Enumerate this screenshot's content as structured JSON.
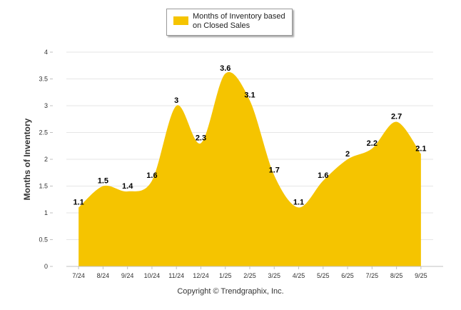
{
  "chart_data": {
    "type": "area",
    "title": "",
    "xlabel": "",
    "ylabel": "Months of Inventory",
    "categories": [
      "7/24",
      "8/24",
      "9/24",
      "10/24",
      "11/24",
      "12/24",
      "1/25",
      "2/25",
      "3/25",
      "4/25",
      "5/25",
      "6/25",
      "7/25",
      "8/25",
      "9/25"
    ],
    "series": [
      {
        "name": "Months of Inventory based on Closed Sales",
        "values": [
          1.1,
          1.5,
          1.4,
          1.6,
          3,
          2.3,
          3.6,
          3.1,
          1.7,
          1.1,
          1.6,
          2,
          2.2,
          2.7,
          2.1
        ],
        "labels": [
          "1.1",
          "1.5",
          "1.4",
          "1.6",
          "3",
          "2.3",
          "3.6",
          "3.1",
          "1.7",
          "1.1",
          "1.6",
          "2",
          "2.2",
          "2.7",
          "2.1"
        ],
        "color": "#F5C400"
      }
    ],
    "ylim": [
      0,
      4
    ],
    "yticks": [
      0,
      0.5,
      1,
      1.5,
      2,
      2.5,
      3,
      3.5,
      4
    ],
    "ytick_labels": [
      "0",
      "0.5",
      "1",
      "1.5",
      "2",
      "2.5",
      "3",
      "3.5",
      "4"
    ],
    "grid": true,
    "legend_position": "top-center"
  },
  "legend": {
    "label": "Months of Inventory based on Closed Sales"
  },
  "footer": {
    "copyright": "Copyright © Trendgraphix, Inc."
  }
}
